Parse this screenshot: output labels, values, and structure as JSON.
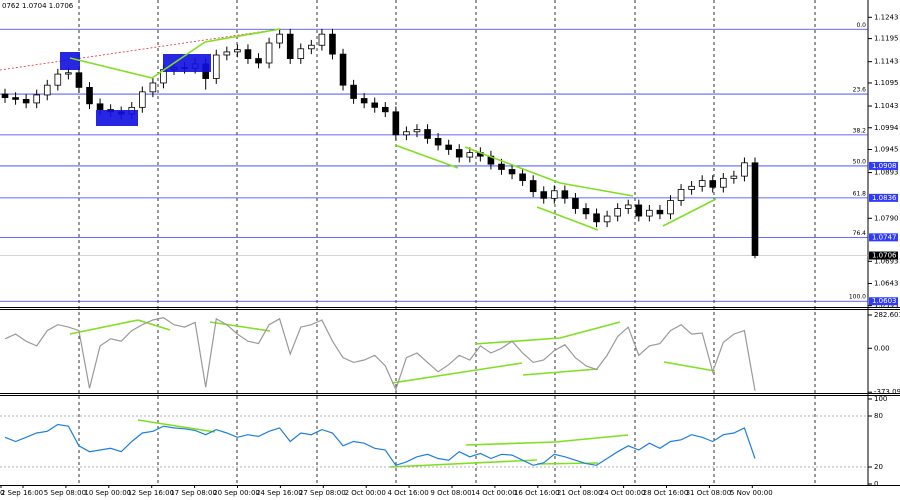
{
  "header_text": "0762 1.0704 1.0706",
  "time_axis": {
    "labels": [
      "0",
      "2 Sep 16:00",
      "5 Sep 08:00",
      "10 Sep 00:00",
      "12 Sep 16:00",
      "17 Sep 08:00",
      "20 Sep 00:00",
      "24 Sep 16:00",
      "27 Sep 08:00",
      "2 Oct 00:00",
      "4 Oct 16:00",
      "9 Oct 08:00",
      "14 Oct 00:00",
      "16 Oct 16:00",
      "21 Oct 08:00",
      "24 Oct 00:00",
      "28 Oct 16:00",
      "31 Oct 08:00",
      "5 Nov 00:00"
    ]
  },
  "chart_data": [
    {
      "type": "candlestick",
      "ylim": [
        1.059,
        1.1282
      ],
      "yticks": [
        1.1243,
        1.1195,
        1.1143,
        1.1095,
        1.1043,
        1.0994,
        1.0945,
        1.0893,
        {
          "value": 1.079,
          "label": "1.0790"
        },
        1.0693,
        1.0643,
        1.0593
      ],
      "open": [
        1.107,
        1.1062,
        1.1058,
        1.105,
        1.1068,
        1.109,
        1.1115,
        1.1118,
        1.1085,
        1.1048,
        1.1035,
        1.103,
        1.1025,
        1.104,
        1.1075,
        1.1095,
        1.1125,
        1.113,
        1.1128,
        1.1138,
        1.1105,
        1.1158,
        1.1165,
        1.117,
        1.115,
        1.114,
        1.1185,
        1.1205,
        1.115,
        1.1172,
        1.118,
        1.1205,
        1.116,
        1.109,
        1.106,
        1.105,
        1.104,
        1.103,
        1.0978,
        1.0985,
        1.099,
        1.097,
        1.0955,
        1.0945,
        1.0928,
        1.0938,
        1.093,
        1.0912,
        1.09,
        1.089,
        1.0875,
        1.085,
        1.0835,
        1.0852,
        1.0835,
        1.0812,
        1.08,
        1.0782,
        1.0795,
        1.0812,
        1.082,
        1.0795,
        1.0808,
        1.08,
        1.083,
        1.0855,
        1.0862,
        1.0875,
        1.086,
        1.088,
        1.0885,
        1.0915
      ],
      "high": [
        1.1082,
        1.1074,
        1.107,
        1.108,
        1.1102,
        1.1127,
        1.113,
        1.113,
        1.1097,
        1.106,
        1.1047,
        1.1042,
        1.1052,
        1.1087,
        1.1107,
        1.1137,
        1.1142,
        1.1142,
        1.115,
        1.115,
        1.117,
        1.1177,
        1.1182,
        1.1182,
        1.1162,
        1.1197,
        1.1217,
        1.1217,
        1.1184,
        1.1192,
        1.1217,
        1.1217,
        1.1172,
        1.1102,
        1.1072,
        1.1062,
        1.1052,
        1.1042,
        1.0997,
        1.1002,
        1.1002,
        1.0982,
        1.0967,
        1.0957,
        1.095,
        1.095,
        1.0942,
        1.0924,
        1.0912,
        1.0902,
        1.0887,
        1.0862,
        1.0864,
        1.0864,
        1.0847,
        1.0824,
        1.0812,
        1.0807,
        1.0824,
        1.0832,
        1.0832,
        1.082,
        1.082,
        1.0842,
        1.0867,
        1.0874,
        1.0887,
        1.0887,
        1.0892,
        1.0897,
        1.0927,
        1.0927
      ],
      "low": [
        1.105,
        1.1046,
        1.1038,
        1.1038,
        1.1056,
        1.1078,
        1.1103,
        1.1073,
        1.1036,
        1.1023,
        1.1018,
        1.1013,
        1.1013,
        1.1028,
        1.1063,
        1.1083,
        1.1113,
        1.1116,
        1.1116,
        1.108,
        1.1093,
        1.1146,
        1.1153,
        1.1138,
        1.1128,
        1.1128,
        1.1173,
        1.1138,
        1.1138,
        1.116,
        1.1168,
        1.1148,
        1.1078,
        1.1048,
        1.1038,
        1.1028,
        1.1018,
        1.0966,
        1.0966,
        1.0973,
        1.0958,
        1.0943,
        1.0933,
        1.0916,
        1.0916,
        1.0918,
        1.09,
        1.0888,
        1.0878,
        1.0863,
        1.0838,
        1.0823,
        1.0823,
        1.0823,
        1.08,
        1.0788,
        1.077,
        1.077,
        1.0783,
        1.08,
        1.0783,
        1.0783,
        1.0788,
        1.0788,
        1.0818,
        1.0843,
        1.085,
        1.0848,
        1.0848,
        1.0868,
        1.0873,
        1.07
      ],
      "close": [
        1.1062,
        1.1058,
        1.105,
        1.1068,
        1.109,
        1.1115,
        1.1118,
        1.1085,
        1.1048,
        1.1035,
        1.103,
        1.1025,
        1.104,
        1.1075,
        1.1095,
        1.1125,
        1.113,
        1.1128,
        1.1138,
        1.1105,
        1.1158,
        1.1165,
        1.117,
        1.115,
        1.114,
        1.1185,
        1.1205,
        1.115,
        1.1172,
        1.118,
        1.1205,
        1.116,
        1.109,
        1.106,
        1.105,
        1.104,
        1.103,
        1.0978,
        1.0985,
        1.099,
        1.097,
        1.0955,
        1.0945,
        1.0928,
        1.0938,
        1.093,
        1.0912,
        1.09,
        1.089,
        1.0875,
        1.085,
        1.0835,
        1.0852,
        1.0835,
        1.0812,
        1.08,
        1.0782,
        1.0795,
        1.0812,
        1.082,
        1.0795,
        1.0808,
        1.08,
        1.083,
        1.0855,
        1.0862,
        1.0875,
        1.086,
        1.088,
        1.0885,
        1.0915,
        1.0706
      ],
      "levels": [
        {
          "label": "0.0",
          "price": 1.1216,
          "tagged": false
        },
        {
          "label": "23.6",
          "price": 1.107,
          "tagged": false
        },
        {
          "label": "38.2",
          "price": 1.0978,
          "tagged": false
        },
        {
          "label": "50.0",
          "price": 1.0908,
          "tagged": true
        },
        {
          "label": "61.8",
          "price": 1.0836,
          "tagged": true
        },
        {
          "label": "76.4",
          "price": 1.0747,
          "tagged": true
        },
        {
          "label": "100.0",
          "price": 1.0603,
          "tagged": true
        }
      ],
      "level_color": "#2f3bff",
      "last_price": 1.0706
    },
    {
      "type": "line",
      "ylim": [
        -380,
        325
      ],
      "yticks": [
        282.6012,
        {
          "value": 0,
          "label": "0.00"
        },
        {
          "value": -373.097,
          "label": "-373.0970"
        }
      ],
      "series": [
        {
          "color": "#9a9a9a",
          "values": [
            80,
            120,
            60,
            20,
            150,
            200,
            180,
            150,
            -340,
            20,
            80,
            60,
            150,
            200,
            240,
            260,
            200,
            180,
            220,
            -330,
            250,
            200,
            120,
            60,
            40,
            200,
            250,
            -50,
            180,
            200,
            240,
            60,
            -80,
            -120,
            -100,
            -60,
            -150,
            -350,
            -80,
            -40,
            -120,
            -200,
            -140,
            -60,
            -100,
            20,
            -40,
            0,
            60,
            -40,
            -120,
            -100,
            -20,
            30,
            -80,
            -150,
            -180,
            -60,
            100,
            180,
            -60,
            20,
            40,
            150,
            200,
            120,
            130,
            -200,
            50,
            120,
            150,
            -360
          ]
        }
      ]
    },
    {
      "type": "line",
      "ylim": [
        0,
        100
      ],
      "yticks": [
        100,
        80,
        20,
        0
      ],
      "levels": [
        80,
        20
      ],
      "series": [
        {
          "color": "#1e7fe0",
          "values": [
            55,
            50,
            55,
            60,
            62,
            70,
            68,
            45,
            38,
            40,
            42,
            38,
            50,
            60,
            62,
            68,
            66,
            65,
            63,
            58,
            64,
            60,
            55,
            58,
            56,
            62,
            66,
            50,
            60,
            58,
            64,
            60,
            45,
            50,
            48,
            42,
            40,
            22,
            26,
            32,
            35,
            30,
            28,
            38,
            32,
            36,
            30,
            35,
            34,
            28,
            22,
            25,
            35,
            32,
            28,
            24,
            22,
            30,
            38,
            45,
            40,
            48,
            42,
            50,
            52,
            58,
            55,
            50,
            58,
            60,
            66,
            30
          ]
        }
      ]
    }
  ]
}
